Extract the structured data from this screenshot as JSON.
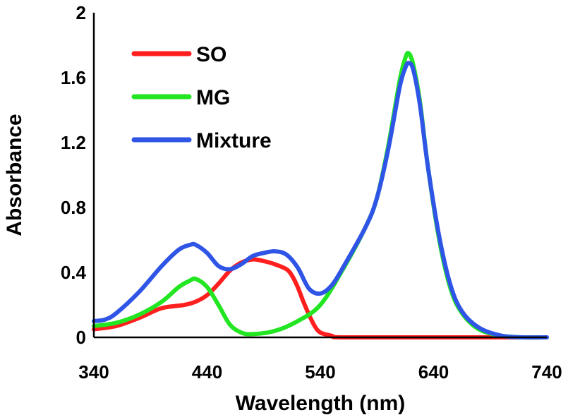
{
  "chart_data": {
    "type": "line",
    "title": "",
    "xlabel": "Wavelength (nm)",
    "ylabel": "Absorbance",
    "xlim": [
      340,
      740
    ],
    "ylim": [
      0,
      2
    ],
    "x_ticks": [
      "340",
      "440",
      "540",
      "640",
      "740"
    ],
    "y_ticks": [
      "0",
      "0.4",
      "0.8",
      "1.2",
      "1.6",
      "2"
    ],
    "grid": false,
    "legend_position": "top-left",
    "series": [
      {
        "name": "SO",
        "color": "#ff1f1f",
        "points": [
          [
            340,
            0.05
          ],
          [
            360,
            0.07
          ],
          [
            380,
            0.12
          ],
          [
            400,
            0.18
          ],
          [
            420,
            0.2
          ],
          [
            430,
            0.22
          ],
          [
            440,
            0.26
          ],
          [
            450,
            0.33
          ],
          [
            460,
            0.41
          ],
          [
            470,
            0.46
          ],
          [
            480,
            0.48
          ],
          [
            490,
            0.47
          ],
          [
            500,
            0.45
          ],
          [
            510,
            0.42
          ],
          [
            515,
            0.38
          ],
          [
            520,
            0.31
          ],
          [
            525,
            0.22
          ],
          [
            530,
            0.14
          ],
          [
            535,
            0.07
          ],
          [
            540,
            0.03
          ],
          [
            550,
            0.01
          ],
          [
            560,
            0.0
          ],
          [
            640,
            0.0
          ],
          [
            740,
            0.0
          ]
        ]
      },
      {
        "name": "MG",
        "color": "#22e622",
        "points": [
          [
            340,
            0.07
          ],
          [
            360,
            0.09
          ],
          [
            380,
            0.14
          ],
          [
            400,
            0.22
          ],
          [
            415,
            0.31
          ],
          [
            425,
            0.35
          ],
          [
            430,
            0.36
          ],
          [
            440,
            0.31
          ],
          [
            450,
            0.2
          ],
          [
            460,
            0.08
          ],
          [
            470,
            0.03
          ],
          [
            480,
            0.02
          ],
          [
            500,
            0.04
          ],
          [
            520,
            0.1
          ],
          [
            540,
            0.2
          ],
          [
            560,
            0.42
          ],
          [
            580,
            0.68
          ],
          [
            590,
            0.86
          ],
          [
            600,
            1.18
          ],
          [
            610,
            1.58
          ],
          [
            615,
            1.72
          ],
          [
            618,
            1.75
          ],
          [
            622,
            1.68
          ],
          [
            628,
            1.45
          ],
          [
            635,
            1.05
          ],
          [
            645,
            0.6
          ],
          [
            655,
            0.3
          ],
          [
            665,
            0.15
          ],
          [
            680,
            0.05
          ],
          [
            700,
            0.01
          ],
          [
            720,
            0.0
          ],
          [
            740,
            0.0
          ]
        ]
      },
      {
        "name": "Mixture",
        "color": "#2f55e6",
        "points": [
          [
            340,
            0.1
          ],
          [
            350,
            0.11
          ],
          [
            360,
            0.15
          ],
          [
            380,
            0.28
          ],
          [
            400,
            0.44
          ],
          [
            415,
            0.54
          ],
          [
            425,
            0.57
          ],
          [
            430,
            0.57
          ],
          [
            440,
            0.52
          ],
          [
            450,
            0.44
          ],
          [
            460,
            0.42
          ],
          [
            470,
            0.45
          ],
          [
            480,
            0.5
          ],
          [
            490,
            0.52
          ],
          [
            500,
            0.53
          ],
          [
            510,
            0.51
          ],
          [
            520,
            0.43
          ],
          [
            530,
            0.3
          ],
          [
            540,
            0.27
          ],
          [
            550,
            0.32
          ],
          [
            560,
            0.43
          ],
          [
            580,
            0.68
          ],
          [
            590,
            0.86
          ],
          [
            600,
            1.16
          ],
          [
            610,
            1.54
          ],
          [
            615,
            1.66
          ],
          [
            618,
            1.69
          ],
          [
            622,
            1.65
          ],
          [
            628,
            1.43
          ],
          [
            635,
            1.05
          ],
          [
            645,
            0.62
          ],
          [
            655,
            0.32
          ],
          [
            665,
            0.16
          ],
          [
            680,
            0.06
          ],
          [
            700,
            0.01
          ],
          [
            720,
            0.0
          ],
          [
            740,
            0.0
          ]
        ]
      }
    ]
  }
}
